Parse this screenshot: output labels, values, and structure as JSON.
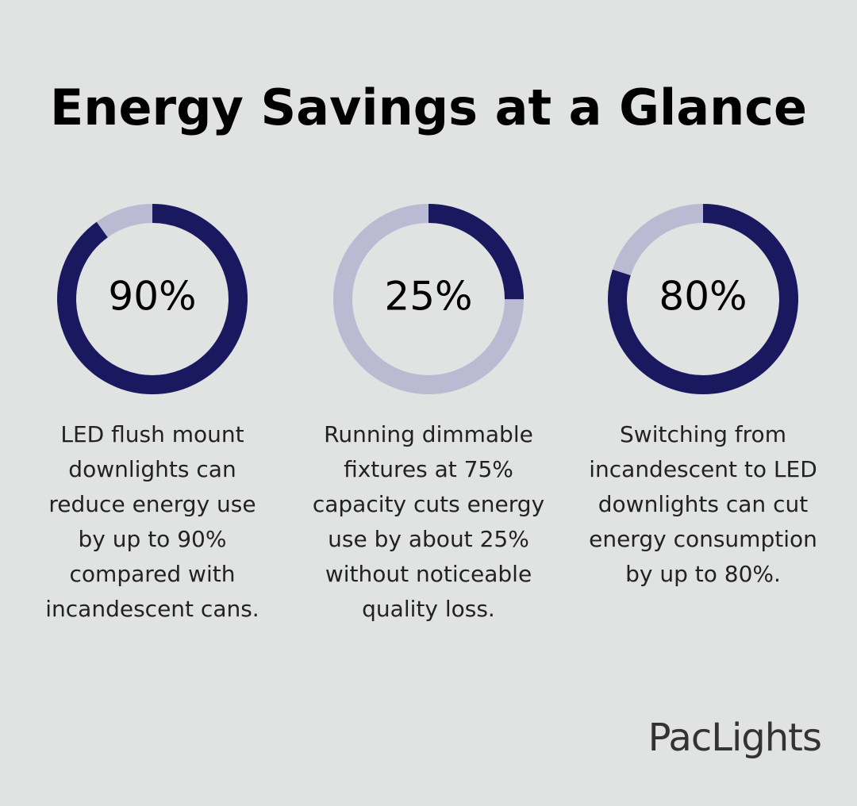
{
  "title": "Energy Savings at a Glance",
  "colors": {
    "filled": "#1a1960",
    "track": "#babad2"
  },
  "stats": [
    {
      "value": 90,
      "value_label": "90%",
      "lines": [
        "LED flush mount",
        "downlights can",
        "reduce energy use",
        "by up to 90%",
        "compared with",
        "incandescent cans."
      ]
    },
    {
      "value": 25,
      "value_label": "25%",
      "lines": [
        "Running dimmable",
        "fixtures at 75%",
        "capacity cuts energy",
        "use by about 25%",
        "without noticeable",
        "quality loss."
      ]
    },
    {
      "value": 80,
      "value_label": "80%",
      "lines": [
        "Switching from",
        "incandescent to LED",
        "downlights can cut",
        "energy consumption",
        "by up to 80%."
      ]
    }
  ],
  "brand": "PacLights"
}
